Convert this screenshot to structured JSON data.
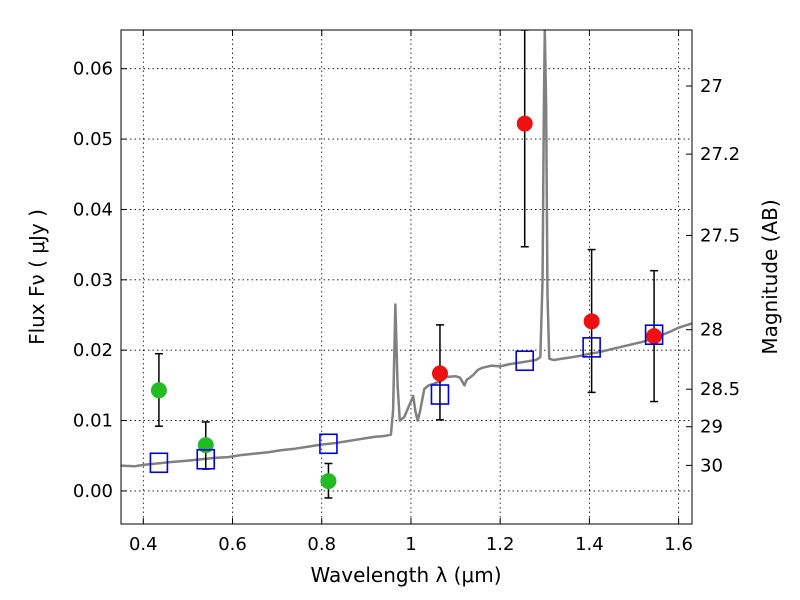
{
  "chart_data": {
    "type": "scatter",
    "xlabel": "Wavelength  λ (μm)",
    "ylabel": "Flux  Fν  ( μJy )",
    "ylabel_right": "Magnitude (AB)",
    "xlim": [
      0.35,
      1.63
    ],
    "ylim": [
      -0.0047,
      0.0655
    ],
    "grid": true,
    "x_ticks": [
      0.4,
      0.6,
      0.8,
      1.0,
      1.2,
      1.4,
      1.6
    ],
    "x_tick_labels": [
      "0.4",
      "0.6",
      "0.8",
      "1",
      "1.2",
      "1.4",
      "1.6"
    ],
    "y_ticks": [
      0.0,
      0.01,
      0.02,
      0.03,
      0.04,
      0.05,
      0.06
    ],
    "y_tick_labels": [
      "0.00",
      "0.01",
      "0.02",
      "0.03",
      "0.04",
      "0.05",
      "0.06"
    ],
    "mag_ticks": [
      {
        "mag": 27,
        "label": "27"
      },
      {
        "mag": 27.2,
        "label": "27.2"
      },
      {
        "mag": 27.5,
        "label": "27.5"
      },
      {
        "mag": 28,
        "label": "28"
      },
      {
        "mag": 28.5,
        "label": "28.5"
      },
      {
        "mag": 29,
        "label": "29"
      },
      {
        "mag": 30,
        "label": "30"
      }
    ],
    "series": [
      {
        "kind": "line",
        "color": "#808080",
        "points": [
          [
            0.35,
            0.0036
          ],
          [
            0.38,
            0.0035
          ],
          [
            0.4,
            0.0037
          ],
          [
            0.43,
            0.0039
          ],
          [
            0.46,
            0.0041
          ],
          [
            0.48,
            0.0042
          ],
          [
            0.5,
            0.0043
          ],
          [
            0.53,
            0.0045
          ],
          [
            0.56,
            0.0047
          ],
          [
            0.59,
            0.0048
          ],
          [
            0.62,
            0.0051
          ],
          [
            0.65,
            0.0053
          ],
          [
            0.68,
            0.0055
          ],
          [
            0.71,
            0.0058
          ],
          [
            0.74,
            0.006
          ],
          [
            0.77,
            0.0063
          ],
          [
            0.8,
            0.0066
          ],
          [
            0.83,
            0.0068
          ],
          [
            0.86,
            0.0071
          ],
          [
            0.88,
            0.0073
          ],
          [
            0.9,
            0.0075
          ],
          [
            0.92,
            0.0077
          ],
          [
            0.94,
            0.0078
          ],
          [
            0.955,
            0.008
          ],
          [
            0.96,
            0.0115
          ],
          [
            0.965,
            0.0265
          ],
          [
            0.97,
            0.015
          ],
          [
            0.975,
            0.01
          ],
          [
            0.985,
            0.0105
          ],
          [
            0.995,
            0.012
          ],
          [
            1.005,
            0.0135
          ],
          [
            1.01,
            0.0113
          ],
          [
            1.015,
            0.01
          ],
          [
            1.02,
            0.0112
          ],
          [
            1.03,
            0.0145
          ],
          [
            1.04,
            0.015
          ],
          [
            1.05,
            0.0152
          ],
          [
            1.07,
            0.0157
          ],
          [
            1.08,
            0.0162
          ],
          [
            1.1,
            0.0163
          ],
          [
            1.11,
            0.0161
          ],
          [
            1.12,
            0.015
          ],
          [
            1.125,
            0.0158
          ],
          [
            1.13,
            0.016
          ],
          [
            1.14,
            0.0165
          ],
          [
            1.15,
            0.0172
          ],
          [
            1.16,
            0.0175
          ],
          [
            1.18,
            0.0178
          ],
          [
            1.2,
            0.0177
          ],
          [
            1.22,
            0.018
          ],
          [
            1.24,
            0.0182
          ],
          [
            1.26,
            0.0184
          ],
          [
            1.28,
            0.0186
          ],
          [
            1.29,
            0.019
          ],
          [
            1.295,
            0.03
          ],
          [
            1.298,
            0.055
          ],
          [
            1.3,
            0.0655
          ],
          [
            1.303,
            0.055
          ],
          [
            1.306,
            0.028
          ],
          [
            1.31,
            0.0188
          ],
          [
            1.32,
            0.0186
          ],
          [
            1.34,
            0.0188
          ],
          [
            1.36,
            0.019
          ],
          [
            1.38,
            0.0192
          ],
          [
            1.4,
            0.0195
          ],
          [
            1.42,
            0.0197
          ],
          [
            1.44,
            0.02
          ],
          [
            1.46,
            0.0203
          ],
          [
            1.48,
            0.0206
          ],
          [
            1.5,
            0.0209
          ],
          [
            1.52,
            0.0212
          ],
          [
            1.54,
            0.0216
          ],
          [
            1.56,
            0.0221
          ],
          [
            1.58,
            0.0226
          ],
          [
            1.6,
            0.0232
          ],
          [
            1.62,
            0.0236
          ],
          [
            1.63,
            0.0238
          ]
        ]
      },
      {
        "kind": "points",
        "marker": "circle",
        "color": "#22bb22",
        "points": [
          {
            "x": 0.435,
            "y": 0.0143,
            "err_lo": 0.0092,
            "err_hi": 0.0195
          },
          {
            "x": 0.54,
            "y": 0.0065,
            "err_lo": 0.0031,
            "err_hi": 0.0098
          },
          {
            "x": 0.815,
            "y": 0.0014,
            "err_lo": -0.001,
            "err_hi": 0.0039
          }
        ]
      },
      {
        "kind": "points",
        "marker": "circle",
        "color": "#ee1111",
        "points": [
          {
            "x": 1.065,
            "y": 0.0167,
            "err_lo": 0.0101,
            "err_hi": 0.0236
          },
          {
            "x": 1.255,
            "y": 0.0522,
            "err_lo": 0.0347,
            "err_hi": 0.0655
          },
          {
            "x": 1.405,
            "y": 0.0241,
            "err_lo": 0.014,
            "err_hi": 0.0343
          },
          {
            "x": 1.545,
            "y": 0.022,
            "err_lo": 0.0127,
            "err_hi": 0.0313
          }
        ]
      },
      {
        "kind": "points",
        "marker": "open-square",
        "color": "#0000dd",
        "points": [
          {
            "x": 0.435,
            "y": 0.004
          },
          {
            "x": 0.54,
            "y": 0.0045
          },
          {
            "x": 0.815,
            "y": 0.0067
          },
          {
            "x": 1.065,
            "y": 0.0137
          },
          {
            "x": 1.255,
            "y": 0.0185
          },
          {
            "x": 1.405,
            "y": 0.0204
          },
          {
            "x": 1.545,
            "y": 0.0222
          }
        ]
      }
    ]
  }
}
